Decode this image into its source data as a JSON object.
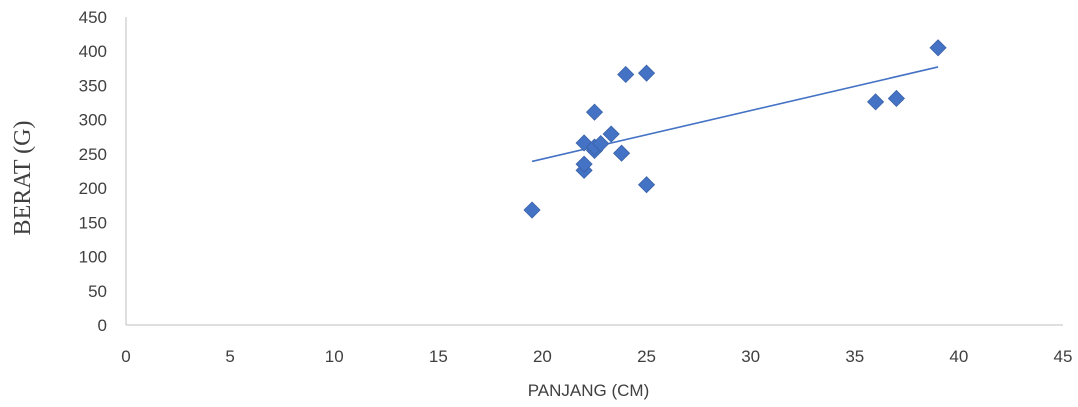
{
  "chart_data": {
    "type": "scatter",
    "title": "",
    "xlabel": "PANJANG (CM)",
    "ylabel": "BERAT (G)",
    "xlim": [
      0,
      45
    ],
    "ylim": [
      0,
      450
    ],
    "x_ticks": [
      0,
      5,
      10,
      15,
      20,
      25,
      30,
      35,
      40,
      45
    ],
    "y_ticks": [
      0,
      50,
      100,
      150,
      200,
      250,
      300,
      350,
      400,
      450
    ],
    "grid": false,
    "legend": "none",
    "series": [
      {
        "marker": "diamond",
        "color": "#4472C4",
        "points": [
          {
            "x": 19.5,
            "y": 168
          },
          {
            "x": 22.0,
            "y": 226
          },
          {
            "x": 22.0,
            "y": 235
          },
          {
            "x": 22.0,
            "y": 266
          },
          {
            "x": 22.5,
            "y": 255
          },
          {
            "x": 22.5,
            "y": 260
          },
          {
            "x": 22.5,
            "y": 311
          },
          {
            "x": 22.8,
            "y": 265
          },
          {
            "x": 23.3,
            "y": 279
          },
          {
            "x": 23.8,
            "y": 251
          },
          {
            "x": 24.0,
            "y": 366
          },
          {
            "x": 25.0,
            "y": 205
          },
          {
            "x": 25.0,
            "y": 368
          },
          {
            "x": 36.0,
            "y": 326
          },
          {
            "x": 37.0,
            "y": 331
          },
          {
            "x": 39.0,
            "y": 405
          }
        ]
      }
    ],
    "trendline": {
      "type": "linear",
      "color": "#4472C4",
      "x": [
        19.5,
        39.0
      ],
      "y": [
        239,
        377
      ]
    }
  }
}
